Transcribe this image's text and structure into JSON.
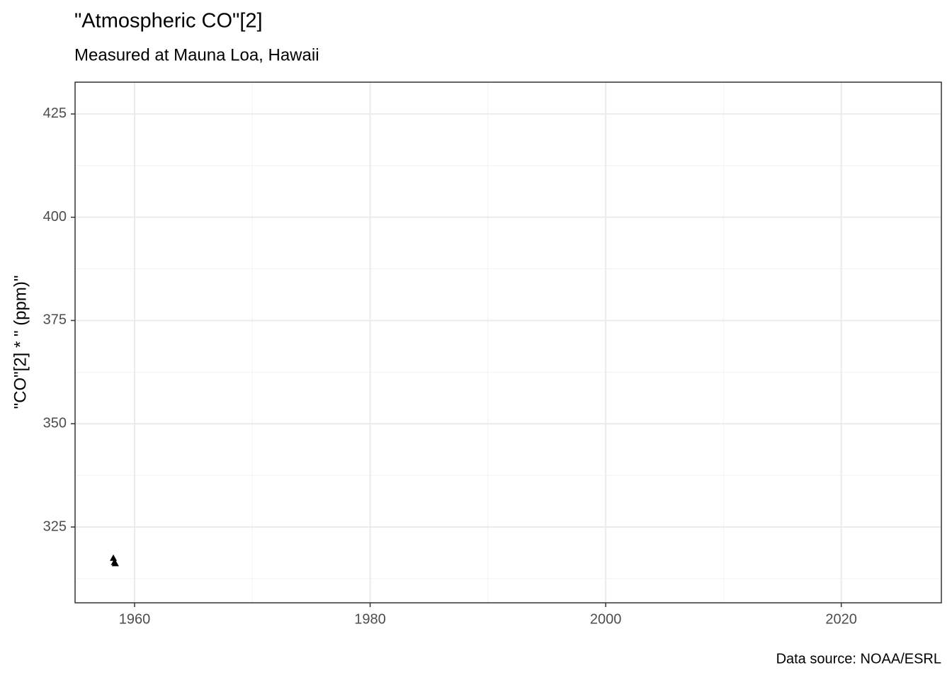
{
  "chart_data": {
    "type": "scatter",
    "title": "\"Atmospheric CO\"[2]",
    "subtitle": "Measured at Mauna Loa, Hawaii",
    "y_label": "\"CO\"[2] * \" (ppm)\"",
    "caption": "Data source: NOAA/ESRL",
    "x": [
      1958.2,
      1958.29,
      1958.37
    ],
    "values": [
      317.5,
      316.5,
      316.2
    ],
    "color": "#000000",
    "marker": "triangle",
    "xlim": [
      1954.95,
      2028.5
    ],
    "ylim": [
      306.65,
      432.7
    ],
    "xticks": [
      1960,
      1980,
      2000,
      2020
    ],
    "yticks": [
      325,
      350,
      375,
      400,
      425
    ],
    "x_minor_ticks": [
      1970,
      1990,
      2010
    ],
    "y_minor_ticks": [
      312.5,
      337.5,
      362.5,
      387.5,
      412.5
    ],
    "grid": true
  }
}
